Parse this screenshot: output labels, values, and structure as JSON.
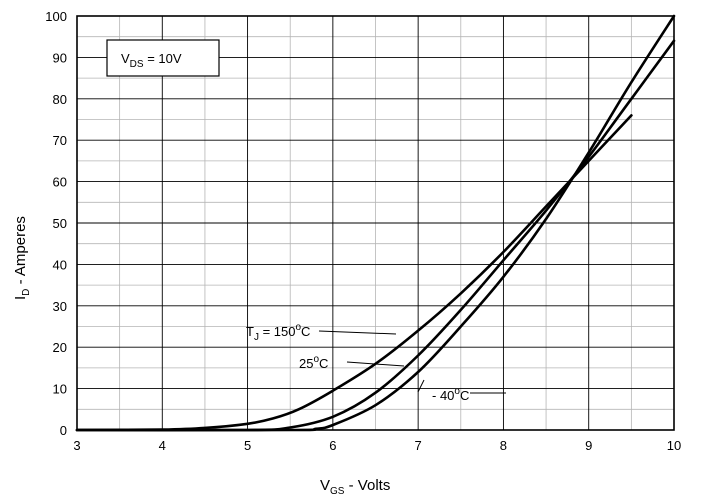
{
  "chart_data": {
    "type": "line",
    "xlabel": {
      "main": "V",
      "sub": "GS",
      "rest": " - Volts"
    },
    "ylabel": {
      "main": "I",
      "sub": "D",
      "rest": " - Amperes"
    },
    "xlim": [
      3,
      10
    ],
    "ylim": [
      0,
      100
    ],
    "x_ticks": [
      "3",
      "4",
      "5",
      "6",
      "7",
      "8",
      "9",
      "10"
    ],
    "y_ticks": [
      "0",
      "10",
      "20",
      "30",
      "40",
      "50",
      "60",
      "70",
      "80",
      "90",
      "100"
    ],
    "grid": {
      "major": true,
      "minor_x": true,
      "minor_y": true
    },
    "condition_box": {
      "main": "V",
      "sub": "DS",
      "rest": " = 10V"
    },
    "series": [
      {
        "label": {
          "main": "T",
          "sub": "J",
          "rest": " = 150",
          "sup": "o",
          "tail": "C"
        },
        "x": [
          3.0,
          4.0,
          4.5,
          5.0,
          5.3,
          5.6,
          6.0,
          6.5,
          7.0,
          7.5,
          8.0,
          8.5,
          9.0,
          9.5
        ],
        "y": [
          0,
          0.1,
          0.5,
          1.5,
          2.8,
          5.0,
          9.5,
          16,
          24,
          33,
          43,
          54,
          65,
          76
        ]
      },
      {
        "label": {
          "main": "",
          "sub": "",
          "rest": "25",
          "sup": "o",
          "tail": "C"
        },
        "x": [
          3.0,
          5.0,
          5.5,
          6.0,
          6.5,
          7.0,
          7.5,
          8.0,
          8.5,
          9.0,
          9.5,
          10.0
        ],
        "y": [
          0,
          0,
          0.6,
          3.2,
          9.0,
          18,
          29,
          41,
          53,
          66,
          80,
          94
        ]
      },
      {
        "label": {
          "main": "",
          "sub": "",
          "rest": "- 40",
          "sup": "o",
          "tail": "C"
        },
        "x": [
          3.0,
          5.5,
          5.8,
          6.0,
          6.5,
          7.0,
          7.5,
          8.0,
          8.5,
          9.0,
          9.5,
          10.0
        ],
        "y": [
          0,
          0,
          0.3,
          1.2,
          6.0,
          14,
          25,
          37,
          51,
          67,
          84,
          100
        ]
      }
    ]
  }
}
